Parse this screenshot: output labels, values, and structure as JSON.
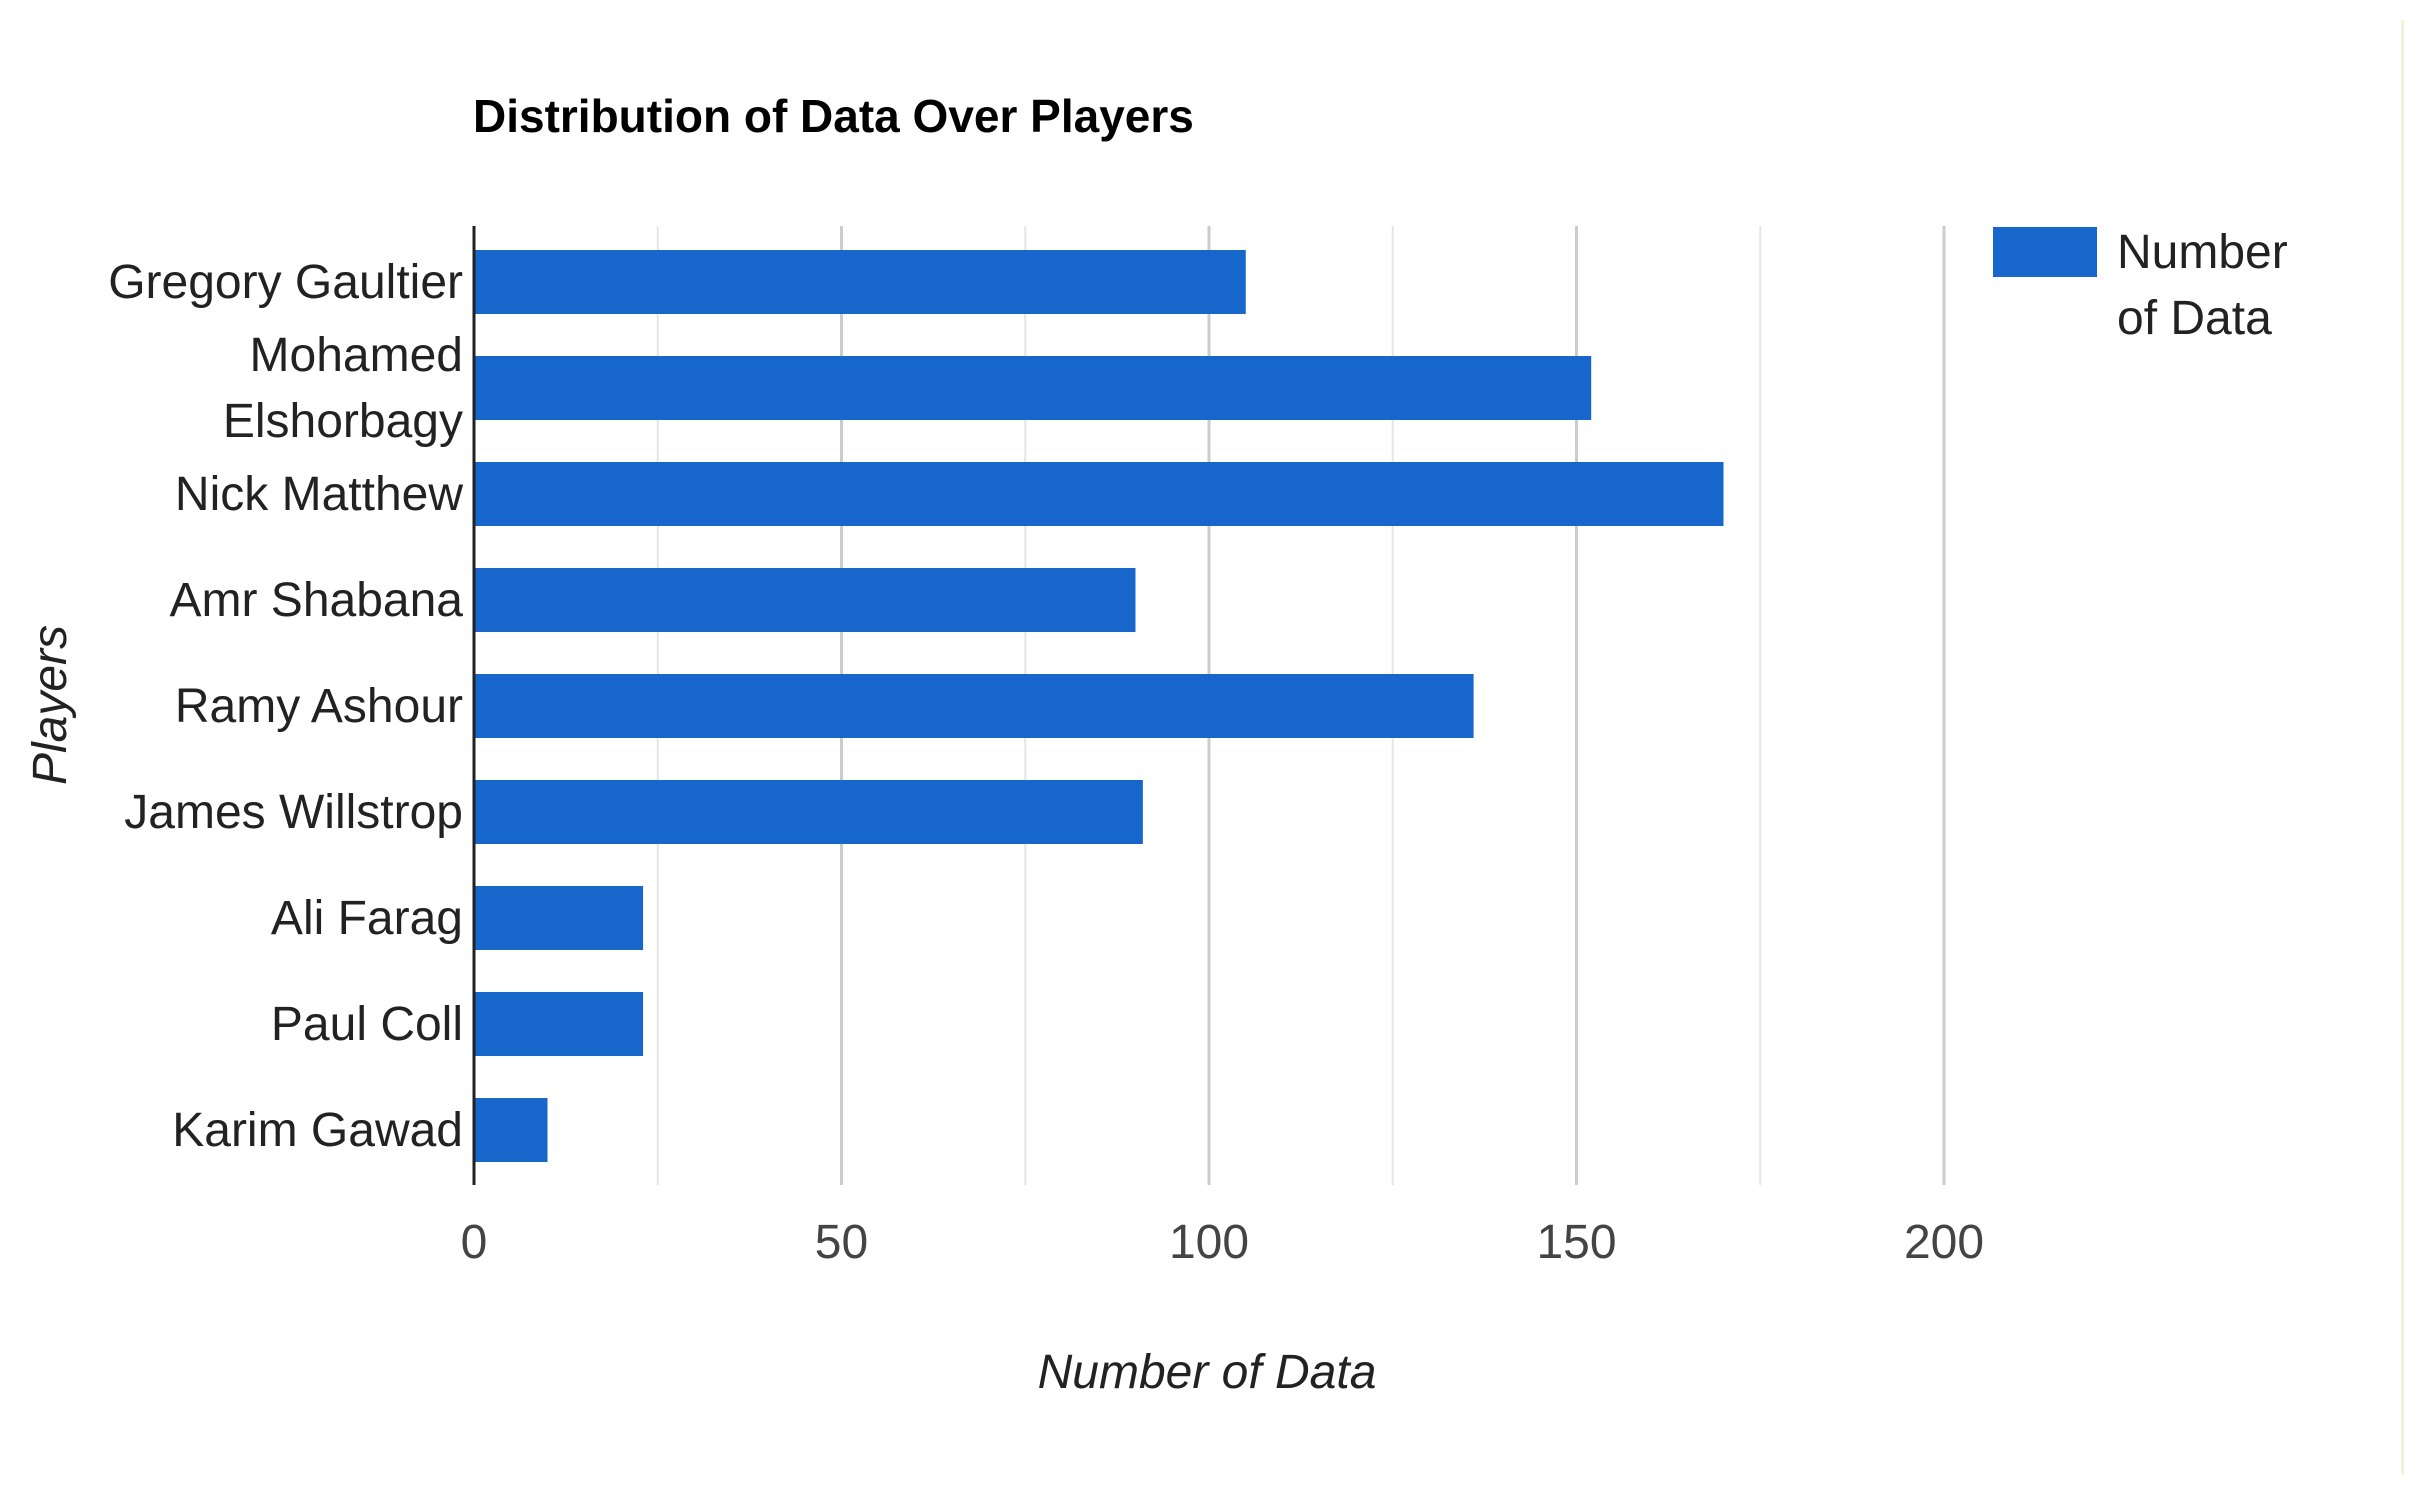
{
  "chart_data": {
    "type": "bar",
    "orientation": "horizontal",
    "title": "Distribution of Data Over Players",
    "xlabel": "Number of Data",
    "ylabel": "Players",
    "categories": [
      "Gregory Gaultier",
      "Mohamed Elshorbagy",
      "Nick Matthew",
      "Amr Shabana",
      "Ramy Ashour",
      "James Willstrop",
      "Ali Farag",
      "Paul Coll",
      "Karim Gawad"
    ],
    "category_lines": [
      [
        "Gregory Gaultier"
      ],
      [
        "Mohamed",
        "Elshorbagy"
      ],
      [
        "Nick Matthew"
      ],
      [
        "Amr Shabana"
      ],
      [
        "Ramy Ashour"
      ],
      [
        "James Willstrop"
      ],
      [
        "Ali Farag"
      ],
      [
        "Paul Coll"
      ],
      [
        "Karim Gawad"
      ]
    ],
    "series": [
      {
        "name": "Number of Data",
        "legend_lines": [
          "Number",
          "of Data"
        ],
        "color": "#1766cc",
        "values": [
          105,
          152,
          170,
          90,
          136,
          91,
          23,
          23,
          10
        ]
      }
    ],
    "xticks": [
      0,
      50,
      100,
      150,
      200
    ],
    "xlim": [
      0,
      250
    ],
    "grid": true,
    "legend": "top-right"
  }
}
